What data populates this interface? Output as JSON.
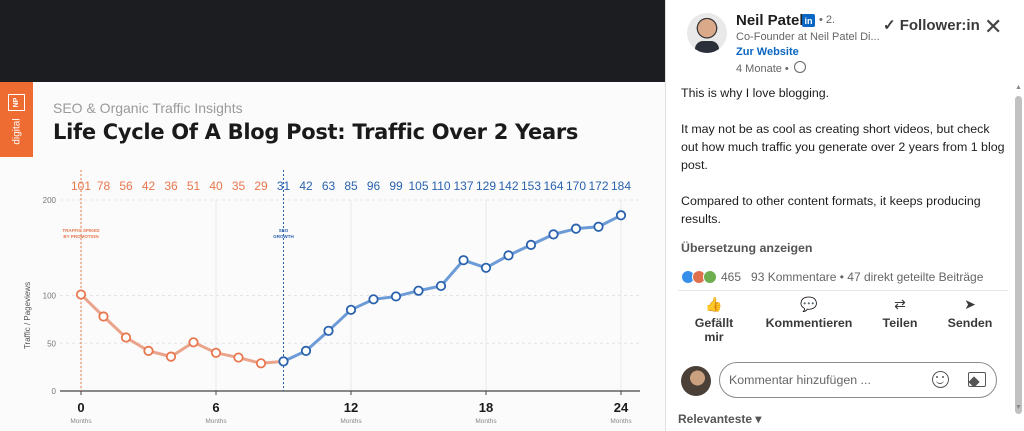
{
  "slide": {
    "logo_box": "NP",
    "logo_word": "digital",
    "subtitle": "SEO & Organic Traffic Insights",
    "title": "Life Cycle Of A Blog Post: Traffic Over 2 Years"
  },
  "chart_data": {
    "type": "line",
    "x": [
      0,
      1,
      2,
      3,
      4,
      5,
      6,
      7,
      8,
      9,
      10,
      11,
      12,
      13,
      14,
      15,
      16,
      17,
      18,
      19,
      20,
      21,
      22,
      23,
      24
    ],
    "values": [
      101,
      78,
      56,
      42,
      36,
      51,
      40,
      35,
      29,
      31,
      42,
      63,
      85,
      96,
      99,
      105,
      110,
      137,
      129,
      142,
      153,
      164,
      170,
      172,
      184
    ],
    "data_labels": [
      "101",
      "78",
      "56",
      "42",
      "36",
      "51",
      "40",
      "35",
      "29",
      "31",
      "42",
      "63",
      "85",
      "96",
      "99",
      "105",
      "110",
      "137",
      "129",
      "142",
      "153",
      "164",
      "170",
      "172",
      "184"
    ],
    "ylabel": "Traffic / Pageviews",
    "ylim": [
      0,
      200
    ],
    "y_ticks": [
      "0",
      "50",
      "100",
      "200"
    ],
    "x_ticks": [
      "0",
      "6",
      "12",
      "18",
      "24"
    ],
    "x_tick_sub": "Months",
    "annotations": [
      {
        "x": 0,
        "lines": [
          "TRAFFIC SPIKED",
          "BY PROMOTION"
        ],
        "color": "#e8774d"
      },
      {
        "x": 9,
        "lines": [
          "SEO",
          "GROWTH"
        ],
        "color": "#2a62ad"
      }
    ],
    "split_index": 9,
    "colors": {
      "phase1": "#e8774d",
      "phase2": "#2a62ad",
      "line1": "#eba48c",
      "line2": "#6c9bd8"
    },
    "grid": true
  },
  "post": {
    "author_name": "Neil Patel",
    "in_badge": "in",
    "degree": "• 2.",
    "headline": "Co-Founder at Neil Patel Di...",
    "website": "Zur Website",
    "time": "4 Monate •",
    "follow": "✓ Follower:in",
    "close": "✕",
    "paragraphs": [
      "This is why I love blogging.",
      "It may not be as cool as creating short videos, but check out how much traffic you generate over 2 years from 1 blog post.",
      "Compared to other content formats, it keeps producing results."
    ],
    "translate": "Übersetzung anzeigen",
    "reaction_count": "465",
    "comments_shares": "93 Kommentare • 47 direkt geteilte Beiträge",
    "reaction_colors": [
      "#378fe9",
      "#df704d",
      "#6dae4f"
    ]
  },
  "actions": {
    "like": {
      "icon": "👍",
      "label": "Gefällt mir"
    },
    "comment": {
      "icon": "💬",
      "label": "Kommentieren"
    },
    "share": {
      "icon": "⇄",
      "label": "Teilen"
    },
    "send": {
      "icon": "➤",
      "label": "Senden"
    }
  },
  "comment_box": {
    "placeholder": "Kommentar hinzufügen ..."
  },
  "sort": {
    "label": "Relevanteste ▾"
  },
  "scrollbar": {
    "up": "▲",
    "down": "▼"
  }
}
